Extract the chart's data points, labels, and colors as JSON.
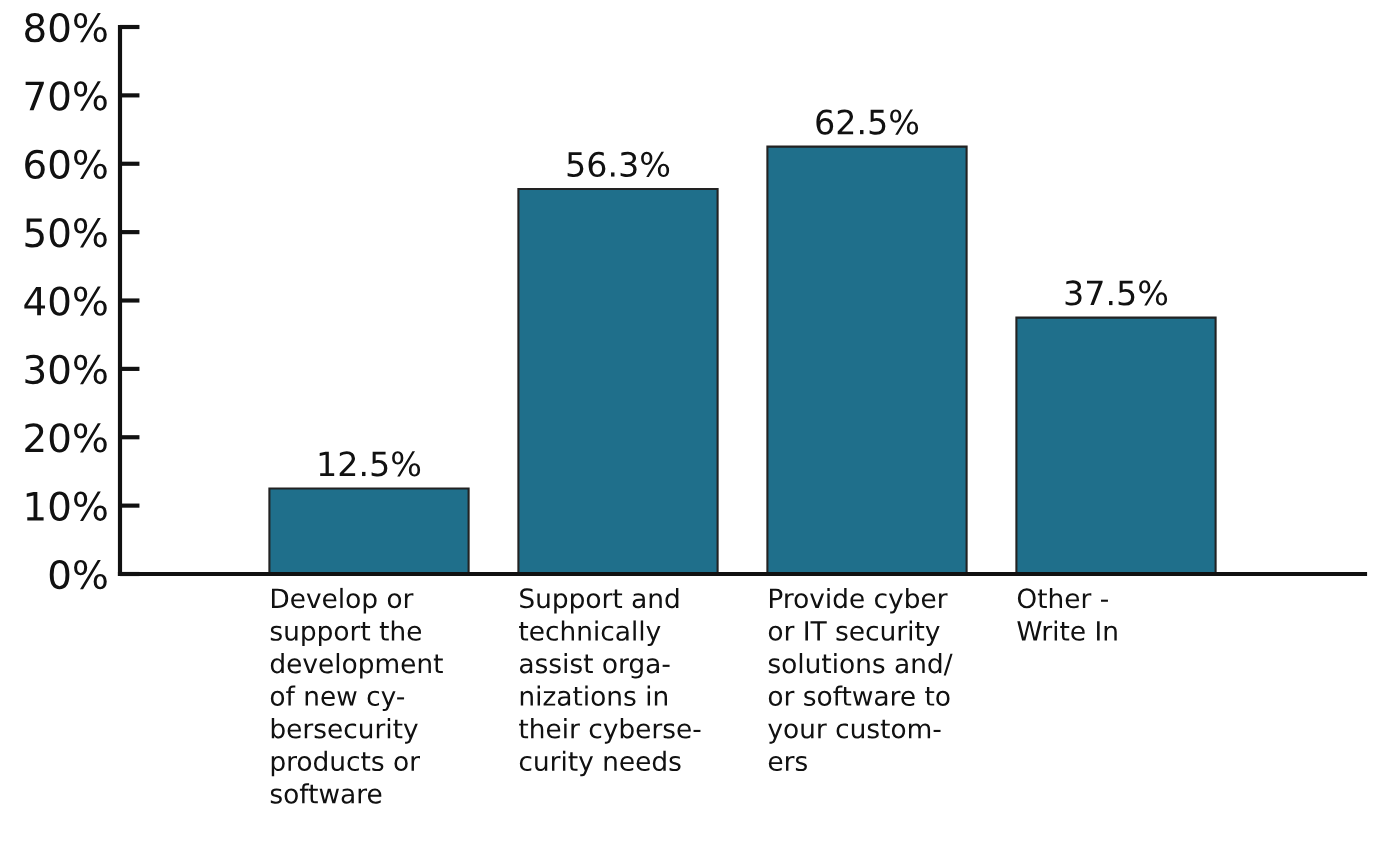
{
  "chart_data": {
    "type": "bar",
    "categories": [
      "Develop or\nsupport the\ndevelopment\nof new cy-\nbersecurity\nproducts or\nsoftware",
      "Support and\ntechnically\nassist orga-\nnizations in\ntheir cyberse-\ncurity needs",
      "Provide cyber\nor IT security\nsolutions and/\nor software to\nyour custom-\ners",
      "Other -\nWrite In"
    ],
    "values": [
      12.5,
      56.3,
      62.5,
      37.5
    ],
    "value_labels": [
      "12.5%",
      "56.3%",
      "62.5%",
      "37.5%"
    ],
    "color": "#1f6f8b",
    "ylim": [
      0,
      80
    ],
    "yticks": [
      {
        "value": 0,
        "label": "0%"
      },
      {
        "value": 10,
        "label": "10%"
      },
      {
        "value": 20,
        "label": "20%"
      },
      {
        "value": 30,
        "label": "30%"
      },
      {
        "value": 40,
        "label": "40%"
      },
      {
        "value": 50,
        "label": "50%"
      },
      {
        "value": 60,
        "label": "60%"
      },
      {
        "value": 70,
        "label": "70%"
      },
      {
        "value": 80,
        "label": "80%"
      }
    ],
    "grid": false,
    "legend": false
  }
}
